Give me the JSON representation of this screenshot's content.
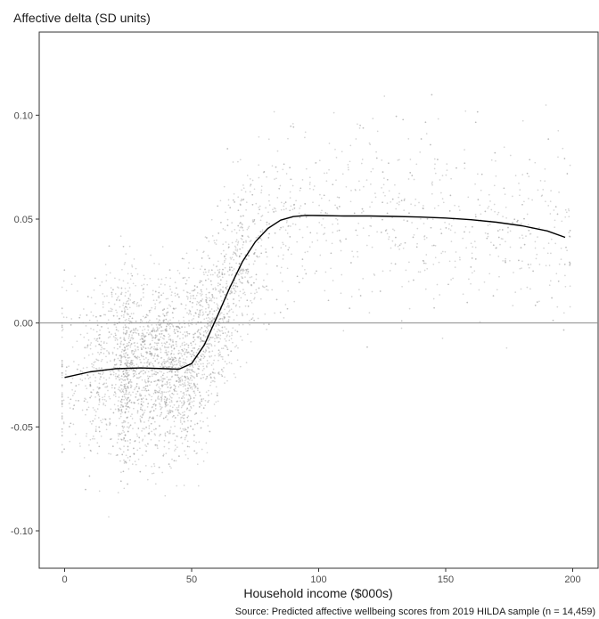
{
  "chart_data": {
    "type": "scatter",
    "title": "",
    "ylabel": "Affective delta (SD units)",
    "xlabel": "Household income ($000s)",
    "caption": "Source: Predicted affective wellbeing scores from 2019 HILDA sample (n = 14,459)",
    "xlim": [
      -10,
      210
    ],
    "ylim": [
      -0.118,
      0.14
    ],
    "x_ticks": [
      0,
      50,
      100,
      150,
      200
    ],
    "x_tick_labels": [
      "0",
      "50",
      "100",
      "150",
      "200"
    ],
    "y_ticks": [
      -0.1,
      -0.05,
      0.0,
      0.05,
      0.1
    ],
    "y_tick_labels": [
      "-0.10",
      "-0.05",
      "0.00",
      "0.05",
      "0.10"
    ],
    "grid": false,
    "reference_line_y": 0.0,
    "point_color": "#9a9a9a",
    "line_color": "#000000",
    "reference_line_color": "#8c8c8c",
    "series": [
      {
        "type": "line",
        "x": [
          0,
          10,
          20,
          30,
          40,
          45,
          50,
          55,
          60,
          65,
          70,
          75,
          80,
          85,
          90,
          95,
          100,
          110,
          120,
          130,
          140,
          150,
          160,
          170,
          180,
          190,
          197
        ],
        "y": [
          -0.0262,
          -0.0235,
          -0.022,
          -0.0216,
          -0.022,
          -0.0222,
          -0.0195,
          -0.0105,
          0.003,
          0.017,
          0.0295,
          0.039,
          0.0455,
          0.0495,
          0.0512,
          0.0518,
          0.0517,
          0.0515,
          0.0515,
          0.0513,
          0.051,
          0.0505,
          0.0497,
          0.0485,
          0.0468,
          0.0443,
          0.0412
        ]
      }
    ]
  }
}
